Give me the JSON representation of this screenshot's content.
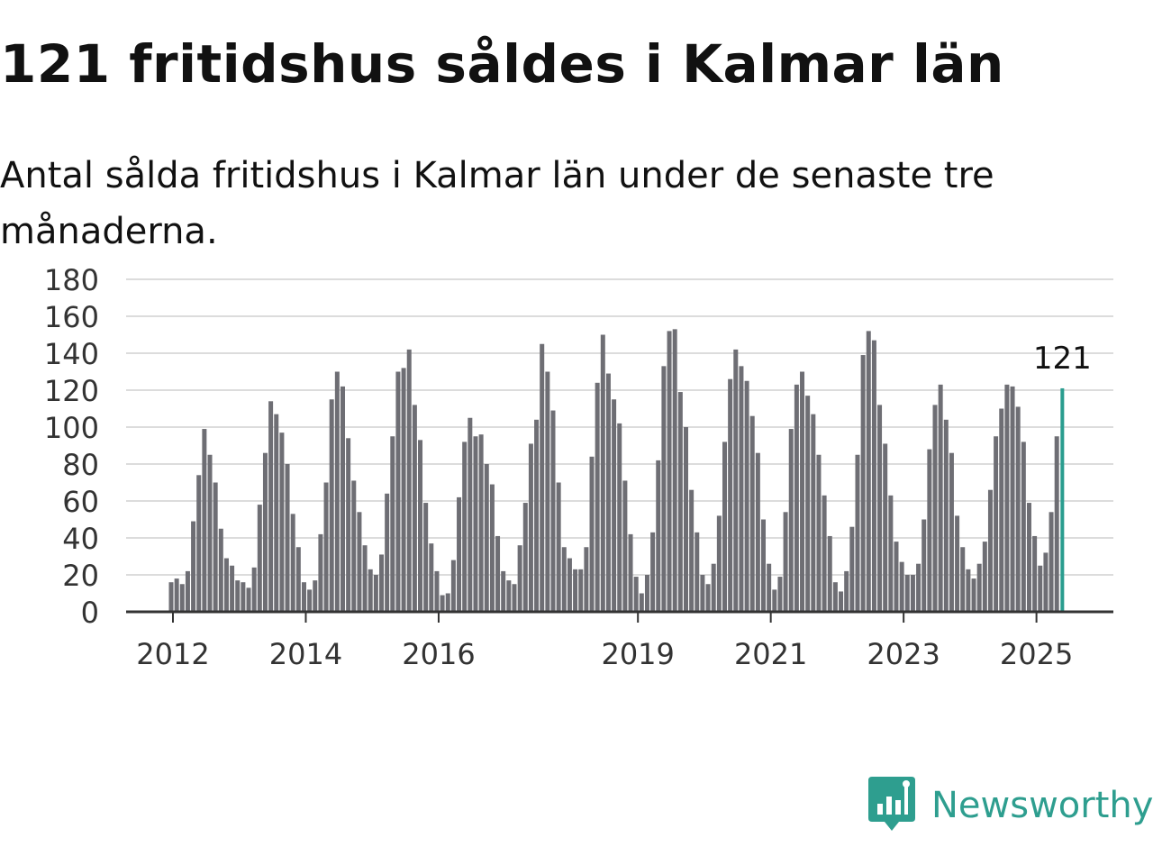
{
  "title": "121 fritidshus såldes i Kalmar län",
  "subtitle": "Antal sålda fritidshus i Kalmar län under de senaste tre månaderna.",
  "brand": {
    "name": "Newsworthy",
    "icon": "newsworthy-logo-icon",
    "color": "#2e9e8f"
  },
  "chart_data": {
    "type": "bar",
    "title": "121 fritidshus såldes i Kalmar län",
    "subtitle": "Antal sålda fritidshus i Kalmar län under de senaste tre månaderna.",
    "xlabel": "",
    "ylabel": "",
    "ylim": [
      0,
      180
    ],
    "yticks": [
      0,
      20,
      40,
      60,
      80,
      100,
      120,
      140,
      160,
      180
    ],
    "xticks": [
      "2012",
      "2014",
      "2016",
      "2019",
      "2021",
      "2023",
      "2025"
    ],
    "grid": true,
    "bar_color": "#6e6e74",
    "highlight_color": "#2a9d8f",
    "highlight_label": "121",
    "series": [
      {
        "values": [
          16,
          18,
          15,
          22,
          49,
          74,
          99,
          85,
          70,
          45,
          29,
          25,
          17,
          16,
          13,
          24,
          58,
          86,
          114,
          107,
          97,
          80,
          53,
          35,
          16,
          12,
          17,
          42,
          70,
          115,
          130,
          122,
          94,
          71,
          54,
          36,
          23,
          20,
          31,
          64,
          95,
          130,
          132,
          142,
          112,
          93,
          59,
          37,
          22,
          9,
          10,
          28,
          62,
          92,
          105,
          95,
          96,
          80,
          69,
          41,
          22,
          17,
          15,
          36,
          59,
          91,
          104,
          145,
          130,
          109,
          70,
          35,
          29,
          23,
          23,
          35,
          84,
          124,
          150,
          129,
          115,
          102,
          71,
          42,
          19,
          10,
          20,
          43,
          82,
          133,
          152,
          153,
          119,
          100,
          66,
          43,
          20,
          15,
          26,
          52,
          92,
          126,
          142,
          133,
          125,
          106,
          86,
          50,
          26,
          12,
          19,
          54,
          99,
          123,
          130,
          117,
          107,
          85,
          63,
          41,
          16,
          11,
          22,
          46,
          85,
          139,
          152,
          147,
          112,
          91,
          63,
          38,
          27,
          20,
          20,
          26,
          50,
          88,
          112,
          123,
          104,
          86,
          52,
          35,
          23,
          18,
          26,
          38,
          66,
          95,
          110,
          123,
          122,
          111,
          92,
          59,
          41,
          25,
          32,
          54,
          95,
          121
        ]
      }
    ]
  }
}
